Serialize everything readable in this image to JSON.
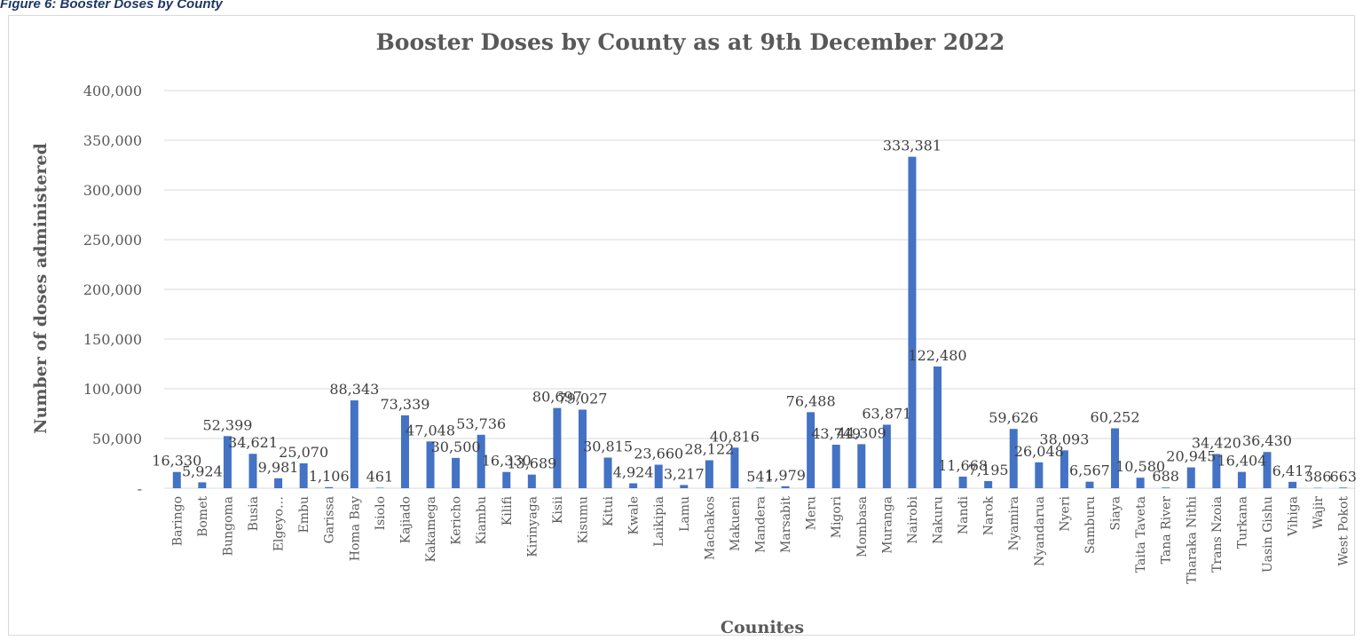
{
  "caption": "Figure 6: Booster Doses by County",
  "chart_data": {
    "type": "bar",
    "title": "Booster Doses by County as at 9th December 2022",
    "xlabel": "Counites",
    "ylabel": "Number of doses administered",
    "ylim": [
      0,
      400000
    ],
    "ytick_labels": [
      "-",
      "50,000",
      "100,000",
      "150,000",
      "200,000",
      "250,000",
      "300,000",
      "350,000",
      "400,000"
    ],
    "grid": true,
    "legend": "none",
    "bar_color": "#4472c4",
    "categories": [
      "Baringo",
      "Bomet",
      "Bungoma",
      "Busia",
      "Elgeyo…",
      "Embu",
      "Garissa",
      "Homa Bay",
      "Isiolo",
      "Kajiado",
      "Kakamega",
      "Kericho",
      "Kiambu",
      "Kilifi",
      "Kirinyaga",
      "Kisii",
      "Kisumu",
      "Kitui",
      "Kwale",
      "Laikipia",
      "Lamu",
      "Machakos",
      "Makueni",
      "Mandera",
      "Marsabit",
      "Meru",
      "Migori",
      "Mombasa",
      "Muranga",
      "Nairobi",
      "Nakuru",
      "Nandi",
      "Narok",
      "Nyamira",
      "Nyandarua",
      "Nyeri",
      "Samburu",
      "Siaya",
      "Taita Taveta",
      "Tana River",
      "Tharaka Nithi",
      "Trans Nzoia",
      "Turkana",
      "Uasin Gishu",
      "Vihiga",
      "Wajir",
      "West Pokot"
    ],
    "values": [
      16330,
      5924,
      52399,
      34621,
      9981,
      25070,
      1106,
      88343,
      461,
      73339,
      47048,
      30500,
      53736,
      16330,
      13689,
      80697,
      79027,
      30815,
      4924,
      23660,
      3217,
      28122,
      40816,
      541,
      1979,
      76488,
      43749,
      44309,
      63871,
      333381,
      122480,
      11668,
      7195,
      59626,
      26048,
      38093,
      6567,
      60252,
      10580,
      688,
      20945,
      34420,
      16404,
      36430,
      6417,
      386,
      663
    ],
    "data_labels": [
      "16,330",
      "5,924",
      "52,399",
      "34,621",
      "9,981",
      "25,070",
      "1,106",
      "88,343",
      "461",
      "73,339",
      "47,048",
      "30,500",
      "53,736",
      "16,330",
      "13,689",
      "80,697",
      "79,027",
      "30,815",
      "4,924",
      "23,660",
      "3,217",
      "28,122",
      "40,816",
      "541",
      "1,979",
      "76,488",
      "43,749",
      "44,309",
      "63,871",
      "333,381",
      "122,480",
      "11,668",
      "7,195",
      "59,626",
      "26,048",
      "38,093",
      "6,567",
      "60,252",
      "10,580",
      "688",
      "20,945",
      "34,420",
      "16,404",
      "36,430",
      "6,417",
      "386",
      "663"
    ]
  }
}
